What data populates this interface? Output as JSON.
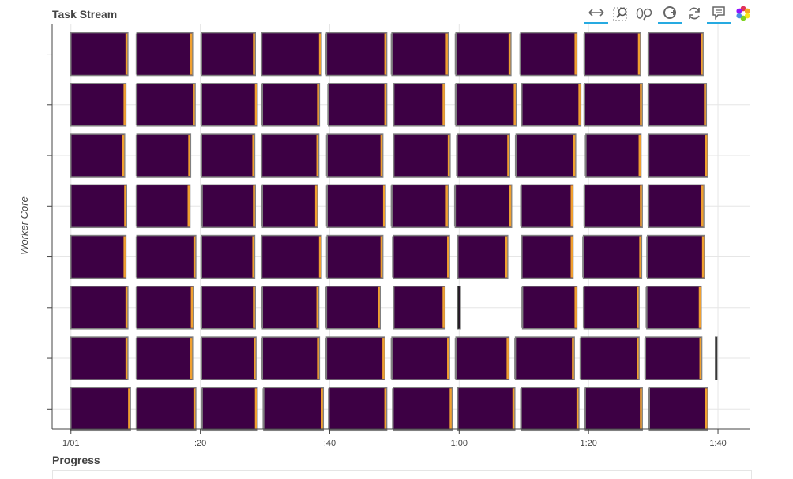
{
  "header": {
    "title": "Task Stream"
  },
  "footer": {
    "progress_title": "Progress"
  },
  "toolbar": {
    "tools": [
      {
        "name": "xpan-tool",
        "icon": "horizontal-arrows-icon",
        "active": true
      },
      {
        "name": "box-zoom-tool",
        "icon": "box-zoom-icon",
        "active": false
      },
      {
        "name": "wheel-zoom-tool",
        "icon": "wheel-zoom-icon",
        "active": false
      },
      {
        "name": "reset-tool",
        "icon": "reset-icon",
        "active": true
      },
      {
        "name": "refresh-tool",
        "icon": "refresh-icon",
        "active": false
      },
      {
        "name": "hover-tool",
        "icon": "hover-tooltip-icon",
        "active": true
      },
      {
        "name": "bokeh-logo",
        "icon": "bokeh-logo-icon",
        "active": false
      }
    ]
  },
  "colors": {
    "task": "#3d0044",
    "task_edge": "#808080",
    "transfer": "#e8500f",
    "serialize": "#f0a030",
    "deserialize": "#2ca05a",
    "grid": "#e6e6e6",
    "axis": "#444444",
    "tool_active": "#26aae1"
  },
  "chart_data": {
    "type": "gantt",
    "title": "Task Stream",
    "ylabel": "Worker Core",
    "xlabel": "",
    "x_unit": "seconds",
    "xlim": [
      -2.9,
      105
    ],
    "x_ticks": [
      {
        "value": 0,
        "label": "1/01"
      },
      {
        "value": 20,
        "label": ":20"
      },
      {
        "value": 40,
        "label": ":40"
      },
      {
        "value": 60,
        "label": "1:00"
      },
      {
        "value": 80,
        "label": "1:20"
      },
      {
        "value": 100,
        "label": "1:40"
      }
    ],
    "lanes": 8,
    "ylim": [
      -0.4,
      7.6
    ],
    "series": [
      {
        "lane": 0,
        "tasks": [
          [
            0,
            9.2
          ],
          [
            10.2,
            19.3
          ],
          [
            20.3,
            28.8
          ],
          [
            29.8,
            39.0
          ],
          [
            39.9,
            48.8
          ],
          [
            49.8,
            58.9
          ],
          [
            59.8,
            68.6
          ],
          [
            69.6,
            78.5
          ],
          [
            79.5,
            88.3
          ],
          [
            89.4,
            98.4
          ]
        ]
      },
      {
        "lane": 1,
        "tasks": [
          [
            0,
            8.8
          ],
          [
            10.2,
            18.8
          ],
          [
            20.2,
            28.6
          ],
          [
            29.6,
            38.4
          ],
          [
            39.5,
            48.5
          ],
          [
            49.6,
            58.5
          ],
          [
            59.5,
            67.7
          ],
          [
            68.7,
            77.8
          ],
          [
            78.8,
            87.8
          ],
          [
            88.8,
            97.5
          ],
          [
            99.6,
            99.8
          ]
        ]
      },
      {
        "lane": 2,
        "tasks": [
          [
            0,
            8.8
          ],
          [
            10.2,
            18.9
          ],
          [
            20.2,
            28.5
          ],
          [
            29.6,
            38.3
          ],
          [
            39.5,
            47.8
          ],
          [
            49.9,
            57.8
          ],
          [
            59.8,
            60.2
          ],
          [
            69.8,
            78.2
          ],
          [
            79.3,
            87.8
          ],
          [
            89.0,
            97.4
          ]
        ]
      },
      {
        "lane": 3,
        "tasks": [
          [
            0,
            8.5
          ],
          [
            10.2,
            19.3
          ],
          [
            20.2,
            28.4
          ],
          [
            29.5,
            38.7
          ],
          [
            39.6,
            48.2
          ],
          [
            49.8,
            58.5
          ],
          [
            59.8,
            67.5
          ],
          [
            69.7,
            77.6
          ],
          [
            79.2,
            88.2
          ],
          [
            89.1,
            97.9
          ]
        ]
      },
      {
        "lane": 4,
        "tasks": [
          [
            0,
            8.6
          ],
          [
            10.2,
            18.4
          ],
          [
            20.3,
            28.5
          ],
          [
            29.6,
            38.1
          ],
          [
            39.6,
            48.6
          ],
          [
            49.6,
            58.3
          ],
          [
            59.4,
            68.1
          ],
          [
            69.6,
            77.6
          ],
          [
            79.4,
            88.3
          ],
          [
            89.3,
            97.8
          ]
        ]
      },
      {
        "lane": 5,
        "tasks": [
          [
            0,
            8.3
          ],
          [
            10.2,
            18.5
          ],
          [
            20.2,
            28.4
          ],
          [
            29.5,
            38.3
          ],
          [
            39.6,
            48.2
          ],
          [
            49.9,
            58.6
          ],
          [
            59.7,
            67.8
          ],
          [
            68.8,
            78.0
          ],
          [
            79.6,
            88.1
          ],
          [
            89.3,
            98.4
          ]
        ]
      },
      {
        "lane": 6,
        "tasks": [
          [
            0,
            8.5
          ],
          [
            10.2,
            19.2
          ],
          [
            20.2,
            28.8
          ],
          [
            29.6,
            38.4
          ],
          [
            39.8,
            48.8
          ],
          [
            49.9,
            57.8
          ],
          [
            59.5,
            68.8
          ],
          [
            69.7,
            78.8
          ],
          [
            79.4,
            88.3
          ],
          [
            89.3,
            98.2
          ]
        ]
      },
      {
        "lane": 7,
        "tasks": [
          [
            0,
            8.8
          ],
          [
            10.2,
            18.8
          ],
          [
            20.2,
            28.5
          ],
          [
            29.5,
            38.7
          ],
          [
            39.5,
            48.8
          ],
          [
            49.6,
            58.3
          ],
          [
            59.5,
            68.0
          ],
          [
            69.5,
            78.2
          ],
          [
            79.4,
            88.0
          ],
          [
            89.3,
            97.7
          ]
        ]
      }
    ]
  }
}
